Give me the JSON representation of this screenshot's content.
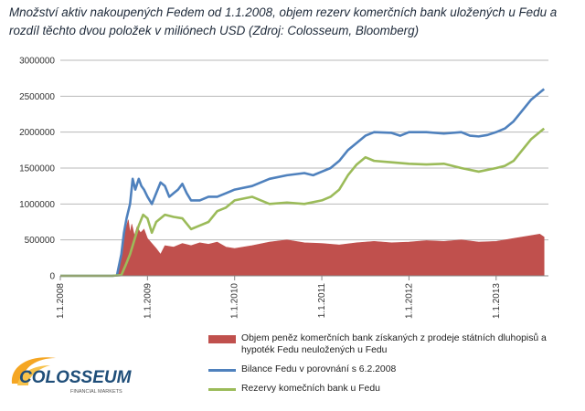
{
  "title": "Množství aktiv nakoupených Fedem od 1.1.2008, objem rezerv komerčních bank uložených u Fedu a rozdíl těchto dvou položek v miliónech USD (Zdroj: Colosseum, Bloomberg)",
  "colors": {
    "difference": "#c0504d",
    "balance": "#4f81bd",
    "reserves": "#9bbb59"
  },
  "logo": {
    "name": "COLOSSEUM",
    "tagline": "FINANCIAL MARKETS"
  },
  "chart_data": {
    "type": "area",
    "grid": true,
    "legend_position": "bottom-right",
    "ylim": [
      0,
      3000000
    ],
    "xlim": [
      2008.0,
      2013.6
    ],
    "y_ticks": [
      0,
      500000,
      1000000,
      1500000,
      2000000,
      2500000,
      3000000
    ],
    "y_tick_labels": [
      "0",
      "500000",
      "1000000",
      "1500000",
      "2000000",
      "2500000",
      "3000000"
    ],
    "x_ticks": [
      2008,
      2009,
      2010,
      2011,
      2012,
      2013
    ],
    "x_tick_labels": [
      "1.1.2008",
      "1.1.2009",
      "1.1.2010",
      "1.1.2011",
      "1.1.2012",
      "1.1.2013"
    ],
    "series": [
      {
        "name": "Objem peněz komerčních bank získaných z prodeje státních dluhopisů a hypoték Fedu neuložených u Fedu",
        "type": "area",
        "x": [
          2008.0,
          2008.65,
          2008.7,
          2008.72,
          2008.75,
          2008.78,
          2008.8,
          2008.82,
          2008.85,
          2008.88,
          2008.92,
          2008.96,
          2009.0,
          2009.05,
          2009.1,
          2009.15,
          2009.2,
          2009.3,
          2009.4,
          2009.5,
          2009.6,
          2009.7,
          2009.8,
          2009.9,
          2010.0,
          2010.2,
          2010.4,
          2010.6,
          2010.8,
          2011.0,
          2011.2,
          2011.4,
          2011.6,
          2011.8,
          2012.0,
          2012.2,
          2012.4,
          2012.6,
          2012.8,
          2013.0,
          2013.2,
          2013.4,
          2013.5,
          2013.55
        ],
        "y": [
          0,
          0,
          300000,
          550000,
          650000,
          780000,
          600000,
          720000,
          560000,
          680000,
          600000,
          650000,
          520000,
          450000,
          380000,
          300000,
          420000,
          400000,
          450000,
          420000,
          460000,
          440000,
          470000,
          400000,
          380000,
          420000,
          470000,
          500000,
          460000,
          450000,
          430000,
          460000,
          480000,
          460000,
          470000,
          490000,
          480000,
          500000,
          470000,
          480000,
          520000,
          560000,
          580000,
          540000
        ]
      },
      {
        "name": "Bilance Fedu v porovnání s 6.2.2008",
        "type": "line",
        "x": [
          2008.0,
          2008.3,
          2008.6,
          2008.65,
          2008.7,
          2008.73,
          2008.76,
          2008.8,
          2008.83,
          2008.86,
          2008.9,
          2008.93,
          2008.96,
          2009.0,
          2009.05,
          2009.1,
          2009.15,
          2009.2,
          2009.25,
          2009.3,
          2009.35,
          2009.4,
          2009.45,
          2009.5,
          2009.6,
          2009.7,
          2009.8,
          2009.9,
          2010.0,
          2010.2,
          2010.4,
          2010.6,
          2010.8,
          2010.9,
          2011.0,
          2011.1,
          2011.2,
          2011.3,
          2011.4,
          2011.5,
          2011.6,
          2011.8,
          2011.9,
          2012.0,
          2012.2,
          2012.4,
          2012.6,
          2012.7,
          2012.8,
          2012.9,
          2013.0,
          2013.1,
          2013.2,
          2013.3,
          2013.4,
          2013.5,
          2013.55
        ],
        "y": [
          0,
          0,
          0,
          10000,
          300000,
          600000,
          800000,
          1000000,
          1350000,
          1200000,
          1350000,
          1250000,
          1200000,
          1100000,
          1000000,
          1150000,
          1300000,
          1250000,
          1100000,
          1150000,
          1200000,
          1280000,
          1150000,
          1050000,
          1050000,
          1100000,
          1100000,
          1150000,
          1200000,
          1250000,
          1350000,
          1400000,
          1430000,
          1400000,
          1450000,
          1500000,
          1600000,
          1750000,
          1850000,
          1950000,
          2000000,
          1990000,
          1950000,
          2000000,
          2000000,
          1980000,
          2000000,
          1950000,
          1940000,
          1960000,
          2000000,
          2050000,
          2150000,
          2300000,
          2450000,
          2550000,
          2600000
        ]
      },
      {
        "name": "Rezervy komečních bank u Fedu",
        "type": "line",
        "x": [
          2008.0,
          2008.6,
          2008.7,
          2008.75,
          2008.8,
          2008.85,
          2008.9,
          2008.95,
          2009.0,
          2009.05,
          2009.1,
          2009.2,
          2009.3,
          2009.4,
          2009.5,
          2009.6,
          2009.7,
          2009.8,
          2009.9,
          2010.0,
          2010.2,
          2010.4,
          2010.6,
          2010.8,
          2011.0,
          2011.1,
          2011.2,
          2011.3,
          2011.4,
          2011.5,
          2011.6,
          2011.8,
          2012.0,
          2012.2,
          2012.4,
          2012.6,
          2012.8,
          2013.0,
          2013.1,
          2013.2,
          2013.3,
          2013.4,
          2013.5,
          2013.55
        ],
        "y": [
          0,
          0,
          10000,
          150000,
          300000,
          500000,
          700000,
          850000,
          800000,
          600000,
          750000,
          850000,
          820000,
          800000,
          650000,
          700000,
          750000,
          900000,
          950000,
          1050000,
          1100000,
          1000000,
          1020000,
          1000000,
          1050000,
          1100000,
          1200000,
          1400000,
          1550000,
          1650000,
          1600000,
          1580000,
          1560000,
          1550000,
          1560000,
          1500000,
          1450000,
          1500000,
          1530000,
          1600000,
          1750000,
          1900000,
          2000000,
          2050000
        ]
      }
    ]
  }
}
